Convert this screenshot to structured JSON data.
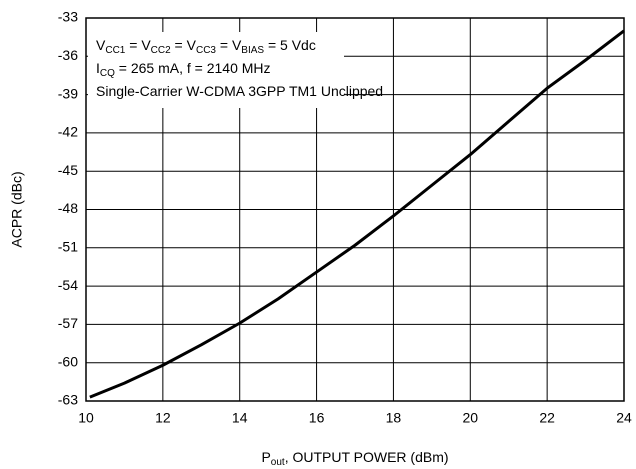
{
  "chart_data": {
    "type": "line",
    "y_label": "ACPR (dBc)",
    "x_label": [
      {
        "t": "P"
      },
      {
        "sub": "out"
      },
      {
        "t": ", OUTPUT POWER (dBm)"
      }
    ],
    "annotations": [
      [
        {
          "t": "V"
        },
        {
          "sub": "CC1"
        },
        {
          "t": " = V"
        },
        {
          "sub": "CC2"
        },
        {
          "t": " = V"
        },
        {
          "sub": "CC3"
        },
        {
          "t": " = V"
        },
        {
          "sub": "BIAS"
        },
        {
          "t": " = 5 Vdc"
        }
      ],
      [
        {
          "t": "I"
        },
        {
          "sub": "CQ"
        },
        {
          "t": " = 265 mA, f = 2140 MHz"
        }
      ],
      [
        {
          "t": "Single-Carrier W-CDMA 3GPP TM1 Unclipped"
        }
      ]
    ],
    "x": [
      10.1,
      11,
      12,
      13,
      14,
      15,
      16,
      17,
      18,
      19,
      20,
      21,
      22,
      23,
      24
    ],
    "series": [
      {
        "name": "ACPR",
        "color": "#000000",
        "values": [
          -62.7,
          -61.6,
          -60.2,
          -58.6,
          -56.9,
          -55,
          -52.9,
          -50.8,
          -48.5,
          -46.1,
          -43.7,
          -41.1,
          -38.5,
          -36.3,
          -34.0
        ]
      }
    ],
    "xlim": [
      10,
      24
    ],
    "xticks": [
      10,
      12,
      14,
      16,
      18,
      20,
      22,
      24
    ],
    "ylim": [
      -63,
      -33
    ],
    "yticks": [
      -63,
      -60,
      -57,
      -54,
      -51,
      -48,
      -45,
      -42,
      -39,
      -36,
      -33
    ],
    "grid": true
  }
}
